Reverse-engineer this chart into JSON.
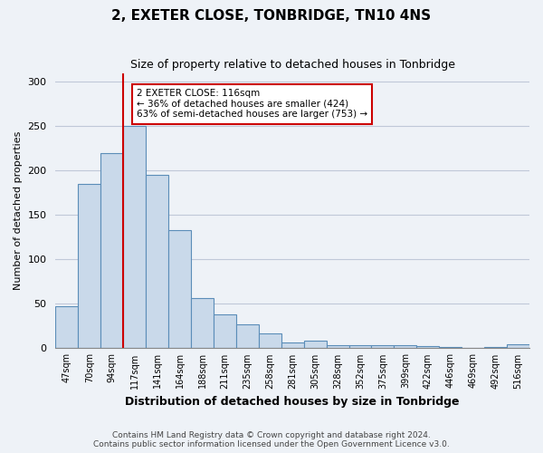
{
  "title": "2, EXETER CLOSE, TONBRIDGE, TN10 4NS",
  "subtitle": "Size of property relative to detached houses in Tonbridge",
  "xlabel": "Distribution of detached houses by size in Tonbridge",
  "ylabel": "Number of detached properties",
  "bar_labels": [
    "47sqm",
    "70sqm",
    "94sqm",
    "117sqm",
    "141sqm",
    "164sqm",
    "188sqm",
    "211sqm",
    "235sqm",
    "258sqm",
    "281sqm",
    "305sqm",
    "328sqm",
    "352sqm",
    "375sqm",
    "399sqm",
    "422sqm",
    "446sqm",
    "469sqm",
    "492sqm",
    "516sqm"
  ],
  "bar_heights": [
    47,
    185,
    220,
    250,
    195,
    133,
    57,
    38,
    27,
    17,
    7,
    9,
    4,
    3,
    4,
    4,
    2,
    1,
    0,
    1,
    5
  ],
  "bar_color": "#c9d9ea",
  "bar_edge_color": "#5b8db8",
  "vline_x": 3,
  "vline_color": "#cc0000",
  "annotation_text": "2 EXETER CLOSE: 116sqm\n← 36% of detached houses are smaller (424)\n63% of semi-detached houses are larger (753) →",
  "annotation_box_color": "#ffffff",
  "annotation_box_edge": "#cc0000",
  "ylim": [
    0,
    310
  ],
  "yticks": [
    0,
    50,
    100,
    150,
    200,
    250,
    300
  ],
  "footer1": "Contains HM Land Registry data © Crown copyright and database right 2024.",
  "footer2": "Contains public sector information licensed under the Open Government Licence v3.0.",
  "bg_color": "#eef2f7",
  "plot_bg_color": "#eef2f7"
}
